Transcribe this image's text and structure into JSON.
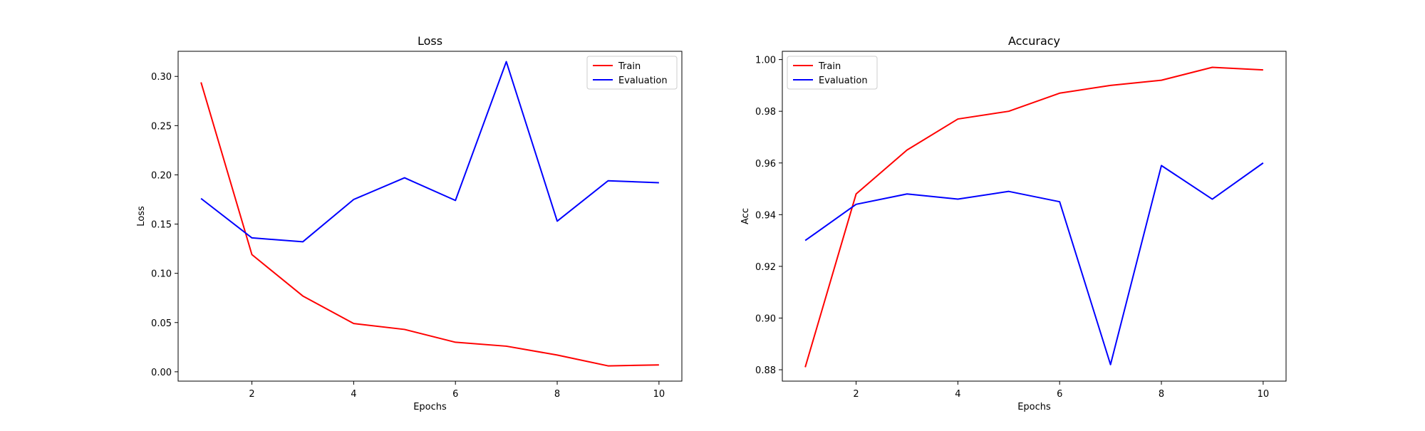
{
  "chart_data": [
    {
      "type": "line",
      "title": "Loss",
      "xlabel": "Epochs",
      "ylabel": "Loss",
      "x": [
        1,
        2,
        3,
        4,
        5,
        6,
        7,
        8,
        9,
        10
      ],
      "xlim": [
        0.55,
        10.45
      ],
      "ylim": [
        -0.0095,
        0.3255
      ],
      "xticks": [
        2,
        4,
        6,
        8,
        10
      ],
      "xtick_labels": [
        "2",
        "4",
        "6",
        "8",
        "10"
      ],
      "yticks": [
        0.0,
        0.05,
        0.1,
        0.15,
        0.2,
        0.25,
        0.3
      ],
      "ytick_labels": [
        "0.00",
        "0.05",
        "0.10",
        "0.15",
        "0.20",
        "0.25",
        "0.30"
      ],
      "grid": false,
      "legend_position": "top-right",
      "series": [
        {
          "name": "Train",
          "color": "#ff0000",
          "values": [
            0.294,
            0.119,
            0.077,
            0.049,
            0.043,
            0.03,
            0.026,
            0.017,
            0.006,
            0.007
          ]
        },
        {
          "name": "Evaluation",
          "color": "#0000ff",
          "values": [
            0.176,
            0.136,
            0.132,
            0.175,
            0.197,
            0.174,
            0.315,
            0.153,
            0.194,
            0.192
          ]
        }
      ]
    },
    {
      "type": "line",
      "title": "Accuracy",
      "xlabel": "Epochs",
      "ylabel": "Acc",
      "x": [
        1,
        2,
        3,
        4,
        5,
        6,
        7,
        8,
        9,
        10
      ],
      "xlim": [
        0.55,
        10.45
      ],
      "ylim": [
        0.8756,
        1.0032
      ],
      "xticks": [
        2,
        4,
        6,
        8,
        10
      ],
      "xtick_labels": [
        "2",
        "4",
        "6",
        "8",
        "10"
      ],
      "yticks": [
        0.88,
        0.9,
        0.92,
        0.94,
        0.96,
        0.98,
        1.0
      ],
      "ytick_labels": [
        "0.88",
        "0.90",
        "0.92",
        "0.94",
        "0.96",
        "0.98",
        "1.00"
      ],
      "grid": false,
      "legend_position": "top-left",
      "series": [
        {
          "name": "Train",
          "color": "#ff0000",
          "values": [
            0.881,
            0.948,
            0.965,
            0.977,
            0.98,
            0.987,
            0.99,
            0.992,
            0.997,
            0.996
          ]
        },
        {
          "name": "Evaluation",
          "color": "#0000ff",
          "values": [
            0.93,
            0.944,
            0.948,
            0.946,
            0.949,
            0.945,
            0.882,
            0.959,
            0.946,
            0.96
          ]
        }
      ]
    }
  ]
}
